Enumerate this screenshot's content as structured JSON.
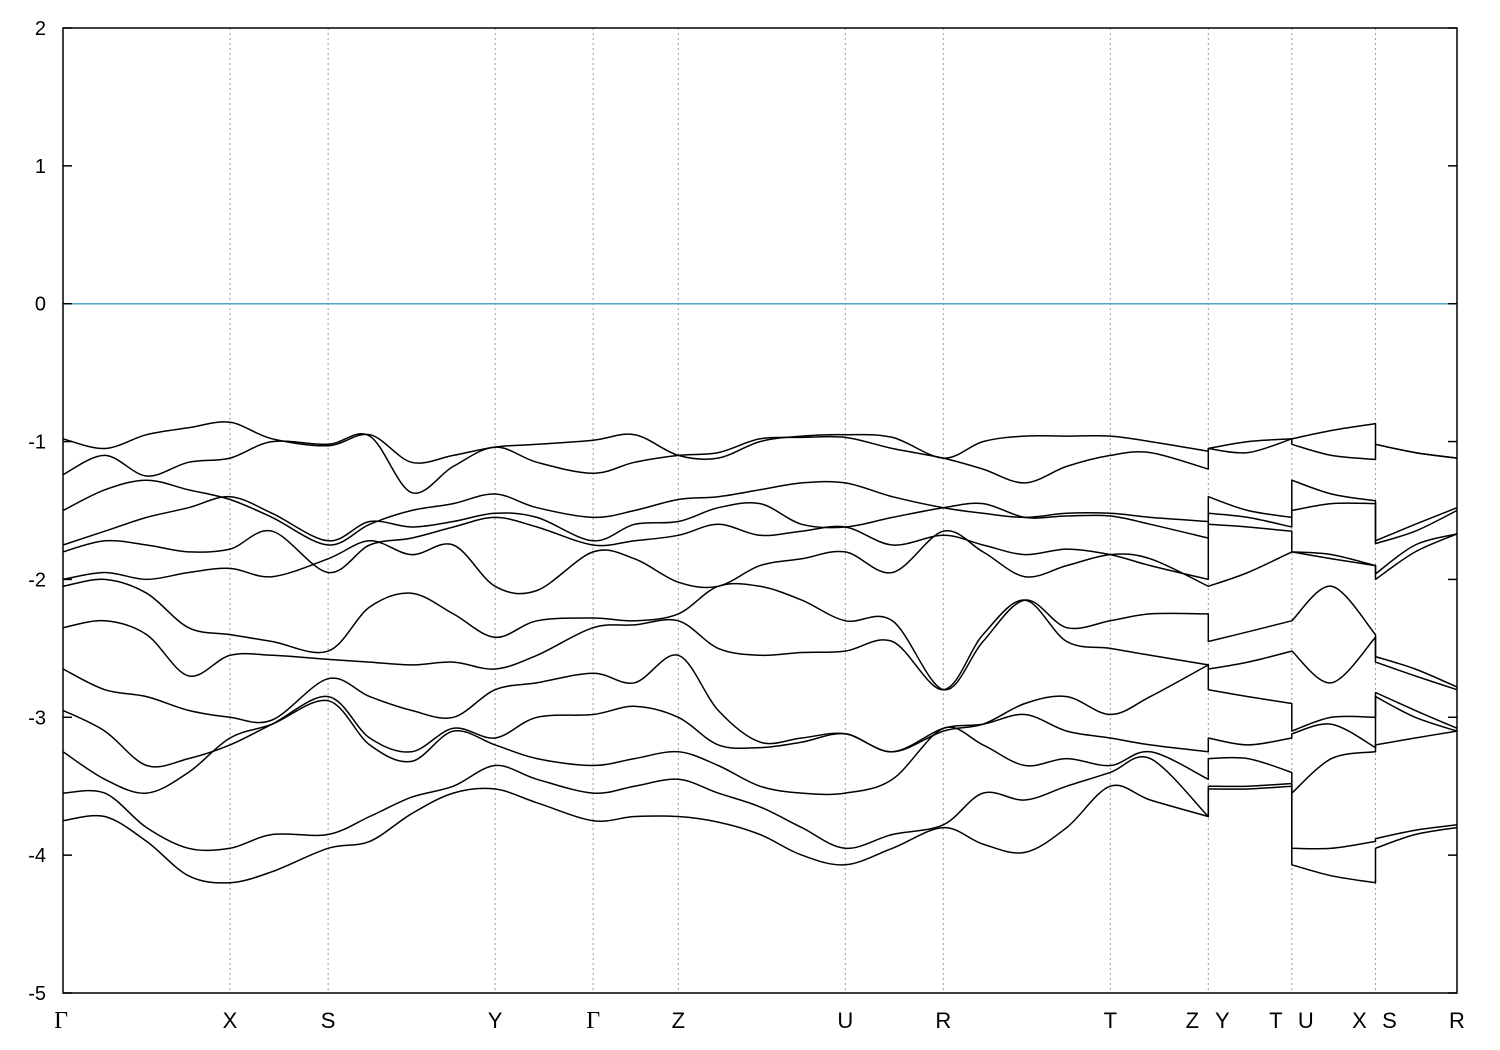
{
  "chart_data": {
    "type": "line",
    "title": "",
    "xlabel": "",
    "ylabel": "",
    "ylim": [
      -5,
      2
    ],
    "xlim": [
      0,
      1
    ],
    "grid": false,
    "yticks": [
      2,
      1,
      0,
      -1,
      -2,
      -3,
      -4,
      -5
    ],
    "ytick_labels": [
      "2",
      "1",
      "0",
      "-1",
      "-2",
      "-3",
      "-4",
      "-5"
    ],
    "kpoints": [
      {
        "label": "Γ",
        "x": 0.0
      },
      {
        "label": "X",
        "x": 0.1198
      },
      {
        "label": "S",
        "x": 0.1902
      },
      {
        "label": "Y",
        "x": 0.31
      },
      {
        "label": "Γ",
        "x": 0.3803
      },
      {
        "label": "Z",
        "x": 0.4414
      },
      {
        "label": "U",
        "x": 0.5612
      },
      {
        "label": "R",
        "x": 0.6315
      },
      {
        "label": "T",
        "x": 0.7513
      },
      {
        "label": "Z",
        "x": 0.8216
      },
      {
        "label": "Y",
        "x": 0.8216
      },
      {
        "label": "T",
        "x": 0.8815
      },
      {
        "label": "U",
        "x": 0.8815
      },
      {
        "label": "X",
        "x": 0.9415
      },
      {
        "label": "S",
        "x": 0.9415
      },
      {
        "label": "R",
        "x": 1.0
      }
    ],
    "fermi_level": {
      "y": 0,
      "color": "#4aa6c2"
    },
    "band_color": "#000000",
    "series": [
      {
        "x": [
          0.0,
          0.03,
          0.06,
          0.09,
          0.1198,
          0.15,
          0.1902,
          0.22,
          0.25,
          0.28,
          0.31,
          0.34,
          0.3803,
          0.41,
          0.4414,
          0.47,
          0.5,
          0.53,
          0.5612,
          0.595,
          0.6315,
          0.66,
          0.69,
          0.72,
          0.7513,
          0.78,
          0.8216,
          0.8216,
          0.85,
          0.8815,
          0.8815,
          0.91,
          0.9415,
          0.9415,
          0.97,
          1.0
        ],
        "y": [
          -0.98,
          -1.05,
          -0.95,
          -0.9,
          -0.86,
          -0.98,
          -1.03,
          -0.95,
          -1.15,
          -1.1,
          -1.04,
          -1.02,
          -0.99,
          -0.95,
          -1.1,
          -1.12,
          -1.0,
          -0.96,
          -0.95,
          -0.97,
          -1.12,
          -1.0,
          -0.96,
          -0.96,
          -0.96,
          -1.0,
          -1.07,
          -1.05,
          -1.0,
          -0.98,
          -0.98,
          -0.92,
          -0.87,
          -1.02,
          -1.08,
          -1.12
        ]
      },
      {
        "x": [
          0.0,
          0.03,
          0.06,
          0.09,
          0.1198,
          0.15,
          0.1902,
          0.22,
          0.25,
          0.28,
          0.31,
          0.34,
          0.3803,
          0.41,
          0.4414,
          0.47,
          0.5,
          0.53,
          0.5612,
          0.595,
          0.6315,
          0.66,
          0.69,
          0.72,
          0.7513,
          0.78,
          0.8216,
          0.8216,
          0.85,
          0.8815,
          0.8815,
          0.91,
          0.9415,
          0.9415,
          0.97,
          1.0
        ],
        "y": [
          -1.24,
          -1.1,
          -1.25,
          -1.15,
          -1.12,
          -1.0,
          -1.02,
          -0.96,
          -1.37,
          -1.18,
          -1.04,
          -1.15,
          -1.23,
          -1.15,
          -1.1,
          -1.08,
          -0.98,
          -0.97,
          -0.97,
          -1.05,
          -1.12,
          -1.2,
          -1.3,
          -1.18,
          -1.1,
          -1.08,
          -1.2,
          -1.05,
          -1.08,
          -0.98,
          -1.02,
          -1.1,
          -1.13,
          -1.02,
          -1.08,
          -1.12
        ]
      },
      {
        "x": [
          0.0,
          0.03,
          0.06,
          0.09,
          0.1198,
          0.15,
          0.1902,
          0.22,
          0.25,
          0.28,
          0.31,
          0.34,
          0.3803,
          0.41,
          0.4414,
          0.47,
          0.5,
          0.53,
          0.5612,
          0.595,
          0.6315,
          0.66,
          0.69,
          0.72,
          0.7513,
          0.78,
          0.8216,
          0.8216,
          0.85,
          0.8815,
          0.8815,
          0.91,
          0.9415,
          0.9415,
          0.97,
          1.0
        ],
        "y": [
          -1.5,
          -1.35,
          -1.28,
          -1.35,
          -1.42,
          -1.55,
          -1.75,
          -1.6,
          -1.5,
          -1.45,
          -1.38,
          -1.48,
          -1.55,
          -1.5,
          -1.42,
          -1.4,
          -1.35,
          -1.3,
          -1.3,
          -1.4,
          -1.48,
          -1.52,
          -1.55,
          -1.52,
          -1.52,
          -1.55,
          -1.58,
          -1.4,
          -1.5,
          -1.55,
          -1.28,
          -1.38,
          -1.43,
          -1.72,
          -1.6,
          -1.48
        ]
      },
      {
        "x": [
          0.0,
          0.03,
          0.06,
          0.09,
          0.1198,
          0.15,
          0.1902,
          0.22,
          0.25,
          0.28,
          0.31,
          0.34,
          0.3803,
          0.41,
          0.4414,
          0.47,
          0.5,
          0.53,
          0.5612,
          0.595,
          0.6315,
          0.66,
          0.69,
          0.72,
          0.7513,
          0.78,
          0.8216,
          0.8216,
          0.85,
          0.8815,
          0.8815,
          0.91,
          0.9415,
          0.9415,
          0.97,
          1.0
        ],
        "y": [
          -1.75,
          -1.65,
          -1.55,
          -1.48,
          -1.4,
          -1.52,
          -1.72,
          -1.58,
          -1.62,
          -1.58,
          -1.52,
          -1.55,
          -1.72,
          -1.6,
          -1.58,
          -1.48,
          -1.45,
          -1.6,
          -1.62,
          -1.55,
          -1.48,
          -1.45,
          -1.55,
          -1.54,
          -1.54,
          -1.6,
          -1.7,
          -1.52,
          -1.55,
          -1.62,
          -1.5,
          -1.45,
          -1.45,
          -1.74,
          -1.65,
          -1.5
        ]
      },
      {
        "x": [
          0.0,
          0.03,
          0.06,
          0.09,
          0.1198,
          0.15,
          0.1902,
          0.22,
          0.25,
          0.28,
          0.31,
          0.34,
          0.3803,
          0.41,
          0.4414,
          0.47,
          0.5,
          0.53,
          0.5612,
          0.595,
          0.6315,
          0.66,
          0.69,
          0.72,
          0.7513,
          0.78,
          0.8216,
          0.8216,
          0.85,
          0.8815,
          0.8815,
          0.91,
          0.9415,
          0.9415,
          0.97,
          1.0
        ],
        "y": [
          -1.8,
          -1.72,
          -1.75,
          -1.8,
          -1.78,
          -1.65,
          -1.95,
          -1.75,
          -1.7,
          -1.62,
          -1.55,
          -1.62,
          -1.75,
          -1.72,
          -1.68,
          -1.6,
          -1.68,
          -1.65,
          -1.62,
          -1.75,
          -1.68,
          -1.75,
          -1.82,
          -1.78,
          -1.82,
          -1.9,
          -2.0,
          -1.6,
          -1.62,
          -1.65,
          -1.8,
          -1.82,
          -1.9,
          -1.96,
          -1.75,
          -1.67
        ]
      },
      {
        "x": [
          0.0,
          0.03,
          0.06,
          0.09,
          0.1198,
          0.15,
          0.1902,
          0.22,
          0.25,
          0.28,
          0.31,
          0.34,
          0.3803,
          0.41,
          0.4414,
          0.47,
          0.5,
          0.53,
          0.5612,
          0.595,
          0.6315,
          0.66,
          0.69,
          0.72,
          0.7513,
          0.78,
          0.8216,
          0.8216,
          0.85,
          0.8815,
          0.8815,
          0.91,
          0.9415,
          0.9415,
          0.97,
          1.0
        ],
        "y": [
          -2.0,
          -1.95,
          -2.0,
          -1.95,
          -1.92,
          -1.98,
          -1.85,
          -1.72,
          -1.82,
          -1.75,
          -2.05,
          -2.08,
          -1.8,
          -1.85,
          -2.02,
          -2.05,
          -1.9,
          -1.85,
          -1.8,
          -1.95,
          -1.65,
          -1.8,
          -1.98,
          -1.9,
          -1.82,
          -1.85,
          -2.05,
          -2.05,
          -1.95,
          -1.8,
          -1.8,
          -1.85,
          -1.9,
          -2.0,
          -1.8,
          -1.67
        ]
      },
      {
        "x": [
          0.0,
          0.03,
          0.06,
          0.09,
          0.1198,
          0.15,
          0.1902,
          0.22,
          0.25,
          0.28,
          0.31,
          0.34,
          0.3803,
          0.41,
          0.4414,
          0.47,
          0.5,
          0.53,
          0.5612,
          0.595,
          0.6315,
          0.66,
          0.69,
          0.72,
          0.7513,
          0.78,
          0.8216,
          0.8216,
          0.85,
          0.8815,
          0.8815,
          0.91,
          0.9415,
          0.9415,
          0.97,
          1.0
        ],
        "y": [
          -2.05,
          -2.0,
          -2.1,
          -2.35,
          -2.4,
          -2.45,
          -2.52,
          -2.2,
          -2.1,
          -2.25,
          -2.42,
          -2.3,
          -2.28,
          -2.3,
          -2.25,
          -2.05,
          -2.05,
          -2.15,
          -2.3,
          -2.3,
          -2.8,
          -2.45,
          -2.15,
          -2.35,
          -2.3,
          -2.25,
          -2.25,
          -2.45,
          -2.38,
          -2.3,
          -2.3,
          -2.05,
          -2.4,
          -2.56,
          -2.65,
          -2.78
        ]
      },
      {
        "x": [
          0.0,
          0.03,
          0.06,
          0.09,
          0.1198,
          0.15,
          0.1902,
          0.22,
          0.25,
          0.28,
          0.31,
          0.34,
          0.3803,
          0.41,
          0.4414,
          0.47,
          0.5,
          0.53,
          0.5612,
          0.595,
          0.6315,
          0.66,
          0.69,
          0.72,
          0.7513,
          0.78,
          0.8216,
          0.8216,
          0.85,
          0.8815,
          0.8815,
          0.91,
          0.9415,
          0.9415,
          0.97,
          1.0
        ],
        "y": [
          -2.35,
          -2.3,
          -2.4,
          -2.7,
          -2.55,
          -2.55,
          -2.58,
          -2.6,
          -2.62,
          -2.6,
          -2.65,
          -2.55,
          -2.35,
          -2.33,
          -2.3,
          -2.5,
          -2.55,
          -2.53,
          -2.52,
          -2.45,
          -2.8,
          -2.4,
          -2.15,
          -2.45,
          -2.5,
          -2.55,
          -2.62,
          -2.65,
          -2.6,
          -2.52,
          -2.52,
          -2.75,
          -2.42,
          -2.6,
          -2.7,
          -2.8
        ]
      },
      {
        "x": [
          0.0,
          0.03,
          0.06,
          0.09,
          0.1198,
          0.15,
          0.1902,
          0.22,
          0.25,
          0.28,
          0.31,
          0.34,
          0.3803,
          0.41,
          0.4414,
          0.47,
          0.5,
          0.53,
          0.5612,
          0.595,
          0.6315,
          0.66,
          0.69,
          0.72,
          0.7513,
          0.78,
          0.8216,
          0.8216,
          0.85,
          0.8815,
          0.8815,
          0.91,
          0.9415,
          0.9415,
          0.97,
          1.0
        ],
        "y": [
          -2.65,
          -2.8,
          -2.85,
          -2.95,
          -3.0,
          -3.02,
          -2.72,
          -2.85,
          -2.95,
          -3.0,
          -2.8,
          -2.75,
          -2.68,
          -2.75,
          -2.55,
          -2.95,
          -3.18,
          -3.15,
          -3.12,
          -3.25,
          -3.1,
          -3.05,
          -2.9,
          -2.85,
          -2.98,
          -2.85,
          -2.62,
          -2.8,
          -2.85,
          -2.9,
          -3.1,
          -3.0,
          -3.0,
          -2.82,
          -2.95,
          -3.08
        ]
      },
      {
        "x": [
          0.0,
          0.03,
          0.06,
          0.09,
          0.1198,
          0.15,
          0.1902,
          0.22,
          0.25,
          0.28,
          0.31,
          0.34,
          0.3803,
          0.41,
          0.4414,
          0.47,
          0.5,
          0.53,
          0.5612,
          0.595,
          0.6315,
          0.66,
          0.69,
          0.72,
          0.7513,
          0.78,
          0.8216,
          0.8216,
          0.85,
          0.8815,
          0.8815,
          0.91,
          0.9415,
          0.9415,
          0.97,
          1.0
        ],
        "y": [
          -2.95,
          -3.1,
          -3.35,
          -3.3,
          -3.2,
          -3.05,
          -2.85,
          -3.15,
          -3.25,
          -3.08,
          -3.15,
          -3.0,
          -2.98,
          -2.92,
          -3.0,
          -3.2,
          -3.22,
          -3.18,
          -3.12,
          -3.25,
          -3.08,
          -3.05,
          -2.98,
          -3.1,
          -3.15,
          -3.2,
          -3.25,
          -3.15,
          -3.2,
          -3.15,
          -3.12,
          -3.05,
          -3.22,
          -2.85,
          -3.0,
          -3.1
        ]
      },
      {
        "x": [
          0.0,
          0.03,
          0.06,
          0.09,
          0.1198,
          0.15,
          0.1902,
          0.22,
          0.25,
          0.28,
          0.31,
          0.34,
          0.3803,
          0.41,
          0.4414,
          0.47,
          0.5,
          0.53,
          0.5612,
          0.595,
          0.6315,
          0.66,
          0.69,
          0.72,
          0.7513,
          0.78,
          0.8216,
          0.8216,
          0.85,
          0.8815,
          0.8815,
          0.91,
          0.9415,
          0.9415,
          0.97,
          1.0
        ],
        "y": [
          -3.25,
          -3.45,
          -3.55,
          -3.4,
          -3.15,
          -3.05,
          -2.88,
          -3.2,
          -3.32,
          -3.1,
          -3.2,
          -3.3,
          -3.35,
          -3.3,
          -3.25,
          -3.35,
          -3.5,
          -3.55,
          -3.55,
          -3.45,
          -3.08,
          -3.2,
          -3.35,
          -3.3,
          -3.35,
          -3.25,
          -3.45,
          -3.3,
          -3.3,
          -3.4,
          -3.55,
          -3.3,
          -3.25,
          -3.2,
          -3.15,
          -3.1
        ]
      },
      {
        "x": [
          0.0,
          0.03,
          0.06,
          0.09,
          0.1198,
          0.15,
          0.1902,
          0.22,
          0.25,
          0.28,
          0.31,
          0.34,
          0.3803,
          0.41,
          0.4414,
          0.47,
          0.5,
          0.53,
          0.5612,
          0.595,
          0.6315,
          0.66,
          0.69,
          0.72,
          0.7513,
          0.78,
          0.8216,
          0.8216,
          0.85,
          0.8815,
          0.8815,
          0.91,
          0.9415,
          0.9415,
          0.97,
          1.0
        ],
        "y": [
          -3.55,
          -3.55,
          -3.8,
          -3.95,
          -3.95,
          -3.85,
          -3.85,
          -3.72,
          -3.58,
          -3.5,
          -3.35,
          -3.45,
          -3.55,
          -3.5,
          -3.45,
          -3.55,
          -3.65,
          -3.8,
          -3.95,
          -3.85,
          -3.78,
          -3.55,
          -3.6,
          -3.5,
          -3.4,
          -3.3,
          -3.72,
          -3.5,
          -3.5,
          -3.48,
          -3.95,
          -3.95,
          -3.9,
          -3.88,
          -3.82,
          -3.78
        ]
      },
      {
        "x": [
          0.0,
          0.03,
          0.06,
          0.09,
          0.1198,
          0.15,
          0.1902,
          0.22,
          0.25,
          0.28,
          0.31,
          0.34,
          0.3803,
          0.41,
          0.4414,
          0.47,
          0.5,
          0.53,
          0.5612,
          0.595,
          0.6315,
          0.66,
          0.69,
          0.72,
          0.7513,
          0.78,
          0.8216,
          0.8216,
          0.85,
          0.8815,
          0.8815,
          0.91,
          0.9415,
          0.9415,
          0.97,
          1.0
        ],
        "y": [
          -3.75,
          -3.72,
          -3.9,
          -4.15,
          -4.2,
          -4.12,
          -3.95,
          -3.9,
          -3.7,
          -3.55,
          -3.52,
          -3.62,
          -3.75,
          -3.72,
          -3.72,
          -3.76,
          -3.85,
          -4.0,
          -4.07,
          -3.95,
          -3.8,
          -3.92,
          -3.98,
          -3.8,
          -3.5,
          -3.6,
          -3.72,
          -3.52,
          -3.52,
          -3.5,
          -4.07,
          -4.15,
          -4.2,
          -3.95,
          -3.85,
          -3.8
        ]
      }
    ]
  }
}
